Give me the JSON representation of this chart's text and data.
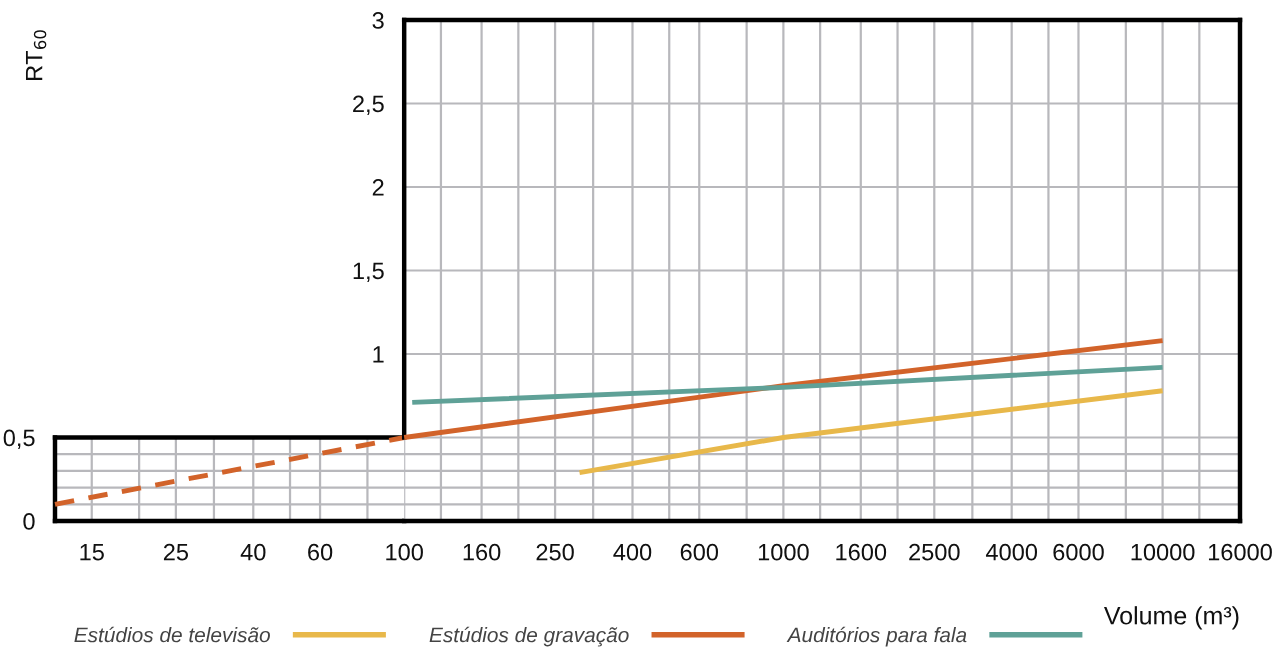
{
  "chart_data": [
    {
      "type": "line",
      "line_style": "dashed",
      "xlim": [
        12,
        100
      ],
      "ylim": [
        0,
        0.5
      ],
      "log": "x",
      "grid": true,
      "xticks": [
        15,
        {
          "value": 20,
          "label": null
        },
        25,
        {
          "value": 31.5,
          "label": null
        },
        40,
        {
          "value": 50,
          "label": null
        },
        60,
        {
          "value": 80,
          "label": null
        }
      ],
      "yticks": [
        0,
        {
          "value": 0.1,
          "label": null
        },
        {
          "value": 0.2,
          "label": null
        },
        {
          "value": 0.3,
          "label": null
        },
        {
          "value": 0.4,
          "label": null
        },
        {
          "value": 0.5,
          "label": "0,5"
        }
      ],
      "series": [
        {
          "color": "#d2632a",
          "x": [
            12,
            100
          ],
          "values": [
            0.1,
            0.5
          ]
        }
      ]
    },
    {
      "type": "line",
      "line_style": "solid",
      "xlim": [
        100,
        16000
      ],
      "ylim": [
        0,
        3
      ],
      "log": "x",
      "grid": true,
      "legend": "bottom",
      "xlabel": "Volume (m³)",
      "ylabel": "RT$_{60}$",
      "xticks": [
        100,
        {
          "value": 125,
          "label": null
        },
        160,
        {
          "value": 200,
          "label": null
        },
        250,
        {
          "value": 315,
          "label": null
        },
        400,
        {
          "value": 500,
          "label": null
        },
        600,
        {
          "value": 800,
          "label": null
        },
        1000,
        {
          "value": 1250,
          "label": null
        },
        1600,
        {
          "value": 2000,
          "label": null
        },
        2500,
        {
          "value": 3150,
          "label": null
        },
        4000,
        {
          "value": 5000,
          "label": null
        },
        6000,
        {
          "value": 8000,
          "label": null
        },
        10000,
        {
          "value": 12500,
          "label": null
        },
        16000
      ],
      "yticks": [
        {
          "value": 0,
          "label": null
        },
        {
          "value": 0.1,
          "label": null
        },
        {
          "value": 0.2,
          "label": null
        },
        {
          "value": 0.3,
          "label": null
        },
        {
          "value": 0.4,
          "label": null
        },
        {
          "value": 0.5,
          "label": null
        },
        1,
        {
          "value": 1.5,
          "label": "1,5"
        },
        2,
        {
          "value": 2.5,
          "label": "2,5"
        },
        3
      ],
      "series": [
        {
          "name": "Estúdios de televisão",
          "color": "#e8b84a",
          "x": [
            290,
            1000,
            10000
          ],
          "values": [
            0.29,
            0.5,
            0.78
          ]
        },
        {
          "name": "Estúdios de gravação",
          "color": "#d2632a",
          "x": [
            100,
            1000,
            10000
          ],
          "values": [
            0.5,
            0.81,
            1.08
          ]
        },
        {
          "name": "Auditórios para fala",
          "color": "#5fa197",
          "x": [
            105,
            1000,
            10000
          ],
          "values": [
            0.71,
            0.8,
            0.92
          ]
        }
      ]
    }
  ]
}
